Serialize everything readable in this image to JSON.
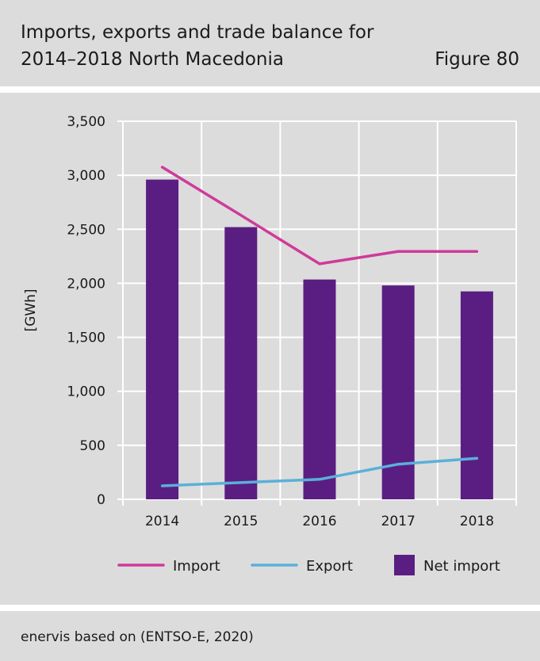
{
  "header": {
    "title_line1": "Imports, exports and trade balance for",
    "title_line2": "2014–2018 North Macedonia",
    "figure_label": "Figure 80"
  },
  "footer": {
    "source": "enervis based on (ENTSO-E, 2020)"
  },
  "chart_data": {
    "type": "bar",
    "categories": [
      "2014",
      "2015",
      "2016",
      "2017",
      "2018"
    ],
    "ylabel": "[GWh]",
    "ylim": [
      0,
      3500
    ],
    "yticks": [
      0,
      500,
      1000,
      1500,
      2000,
      2500,
      3000,
      3500
    ],
    "ytick_labels": [
      "0",
      "500",
      "1,000",
      "1,500",
      "2,000",
      "2,500",
      "3,000",
      "3,500"
    ],
    "grid": true,
    "legend_position": "bottom",
    "series": [
      {
        "name": "Net import",
        "type": "bar",
        "color": "#5a1e82",
        "values": [
          2960,
          2520,
          2035,
          1980,
          1925
        ]
      },
      {
        "name": "Import",
        "type": "line",
        "color": "#cf3a9a",
        "values": [
          3075,
          2630,
          2180,
          2295,
          2295
        ]
      },
      {
        "name": "Export",
        "type": "line",
        "color": "#5ab0d8",
        "values": [
          125,
          155,
          185,
          325,
          380
        ]
      }
    ],
    "legend": [
      {
        "name": "Import",
        "kind": "line",
        "color": "#cf3a9a"
      },
      {
        "name": "Export",
        "kind": "line",
        "color": "#5ab0d8"
      },
      {
        "name": "Net import",
        "kind": "box",
        "color": "#5a1e82"
      }
    ]
  }
}
